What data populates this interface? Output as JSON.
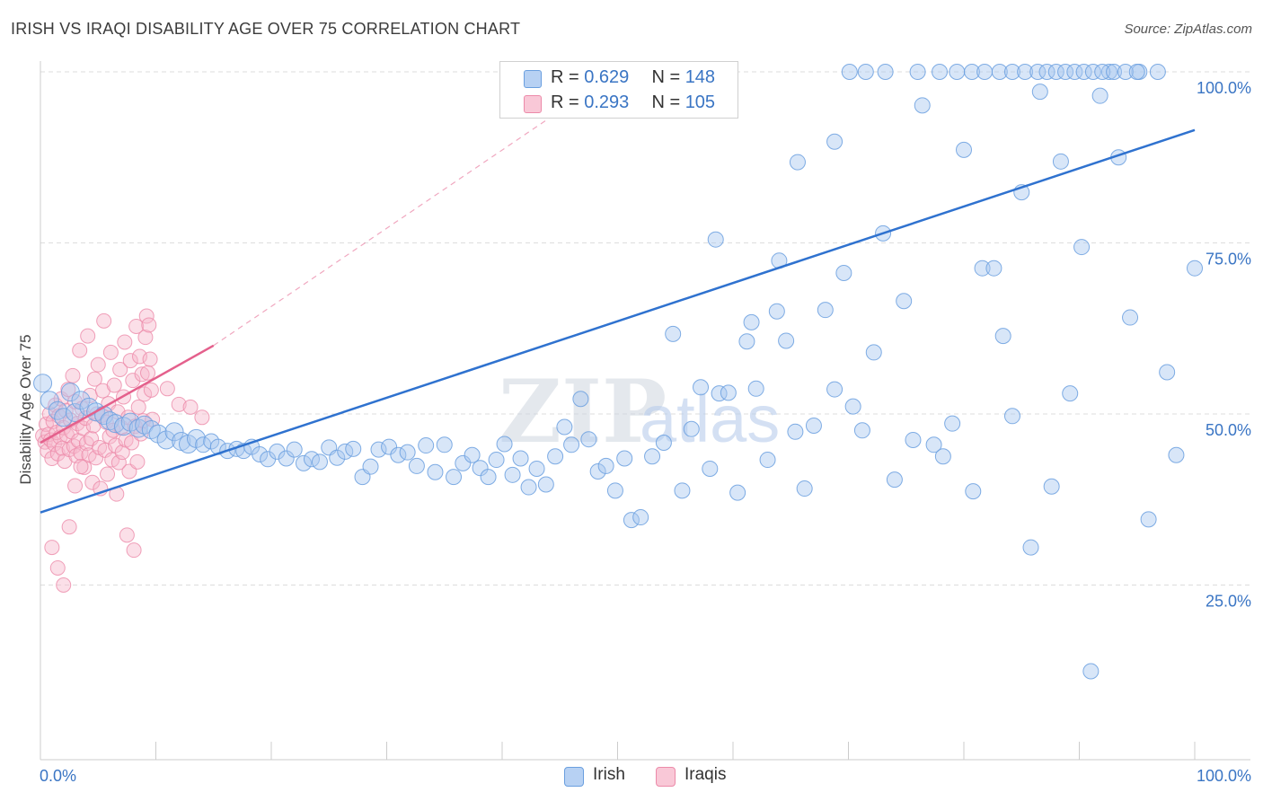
{
  "title": "IRISH VS IRAQI DISABILITY AGE OVER 75 CORRELATION CHART",
  "source": "Source: ZipAtlas.com",
  "watermark": {
    "zip": "ZIP",
    "atlas": "atlas"
  },
  "legend": {
    "irish": {
      "r_label": "R = ",
      "r_value": "0.629",
      "n_label": "N = ",
      "n_value": "148"
    },
    "iraqis": {
      "r_label": "R = ",
      "r_value": "0.293",
      "n_label": "N = ",
      "n_value": "105"
    }
  },
  "colors": {
    "irish_fill": "#a9c8f0",
    "irish_stroke": "#6a9fdf",
    "irish_line": "#2f72cf",
    "iraqis_fill": "#f7b8cb",
    "iraqis_stroke": "#ec8aa9",
    "iraqis_line": "#e4608c",
    "grid": "#dddddd",
    "tick_text": "#3a75c4"
  },
  "chart_data": {
    "type": "scatter",
    "title": "IRISH VS IRAQI DISABILITY AGE OVER 75 CORRELATION CHART",
    "xlabel": "",
    "ylabel": "Disability Age Over 75",
    "xlim": [
      0,
      100
    ],
    "ylim": [
      0,
      105
    ],
    "x_tick_labels": [
      "0.0%",
      "100.0%"
    ],
    "y_ticks": [
      25,
      50,
      75,
      100
    ],
    "y_tick_labels": [
      "25.0%",
      "50.0%",
      "75.0%",
      "100.0%"
    ],
    "grid": true,
    "legend_position": "bottom-center",
    "series": [
      {
        "name": "Irish",
        "r": 0.629,
        "n": 148,
        "trend": {
          "x0": 0,
          "y0": 35.6,
          "x1": 100,
          "y1": 91.5
        },
        "points": [
          [
            0.2,
            54.5
          ],
          [
            0.8,
            52.0
          ],
          [
            1.5,
            50.5
          ],
          [
            2.0,
            49.5
          ],
          [
            2.6,
            53.2
          ],
          [
            3.0,
            50.2
          ],
          [
            3.5,
            52.0
          ],
          [
            4.2,
            51.0
          ],
          [
            4.8,
            50.3
          ],
          [
            5.5,
            49.8
          ],
          [
            6.0,
            49.0
          ],
          [
            6.5,
            48.6
          ],
          [
            7.2,
            48.2
          ],
          [
            7.8,
            48.8
          ],
          [
            8.5,
            47.9
          ],
          [
            9.0,
            48.4
          ],
          [
            9.6,
            47.7
          ],
          [
            10.2,
            47.1
          ],
          [
            10.9,
            46.2
          ],
          [
            11.6,
            47.4
          ],
          [
            12.2,
            46.0
          ],
          [
            12.8,
            45.6
          ],
          [
            13.5,
            46.4
          ],
          [
            14.1,
            45.5
          ],
          [
            14.8,
            46.0
          ],
          [
            15.4,
            45.2
          ],
          [
            16.2,
            44.6
          ],
          [
            17.0,
            44.9
          ],
          [
            17.6,
            44.6
          ],
          [
            18.3,
            45.2
          ],
          [
            19.0,
            44.1
          ],
          [
            19.7,
            43.4
          ],
          [
            20.5,
            44.5
          ],
          [
            21.3,
            43.5
          ],
          [
            22.0,
            44.8
          ],
          [
            22.8,
            42.8
          ],
          [
            23.5,
            43.4
          ],
          [
            24.2,
            43.0
          ],
          [
            25.0,
            45.1
          ],
          [
            25.7,
            43.6
          ],
          [
            26.4,
            44.5
          ],
          [
            27.1,
            44.9
          ],
          [
            27.9,
            40.8
          ],
          [
            28.6,
            42.3
          ],
          [
            29.3,
            44.8
          ],
          [
            30.2,
            45.2
          ],
          [
            31.0,
            44.0
          ],
          [
            31.8,
            44.4
          ],
          [
            32.6,
            42.4
          ],
          [
            33.4,
            45.4
          ],
          [
            34.2,
            41.5
          ],
          [
            35.0,
            45.5
          ],
          [
            35.8,
            40.8
          ],
          [
            36.6,
            42.8
          ],
          [
            37.4,
            44.0
          ],
          [
            38.1,
            42.1
          ],
          [
            38.8,
            40.8
          ],
          [
            39.5,
            43.3
          ],
          [
            40.2,
            45.6
          ],
          [
            40.9,
            41.1
          ],
          [
            41.6,
            43.5
          ],
          [
            42.3,
            39.3
          ],
          [
            43.0,
            42.0
          ],
          [
            43.8,
            39.7
          ],
          [
            44.6,
            43.8
          ],
          [
            45.4,
            48.1
          ],
          [
            46.0,
            45.5
          ],
          [
            46.8,
            52.2
          ],
          [
            47.5,
            46.3
          ],
          [
            48.3,
            41.6
          ],
          [
            49.0,
            42.4
          ],
          [
            49.8,
            38.8
          ],
          [
            50.6,
            43.5
          ],
          [
            51.2,
            34.5
          ],
          [
            52.0,
            34.9
          ],
          [
            53.0,
            43.8
          ],
          [
            54.0,
            45.8
          ],
          [
            54.8,
            61.7
          ],
          [
            55.6,
            38.8
          ],
          [
            56.4,
            47.8
          ],
          [
            57.2,
            53.9
          ],
          [
            58.0,
            42.0
          ],
          [
            58.8,
            53.0
          ],
          [
            59.6,
            53.1
          ],
          [
            60.4,
            38.5
          ],
          [
            61.2,
            60.6
          ],
          [
            62.0,
            53.7
          ],
          [
            63.0,
            43.3
          ],
          [
            63.8,
            65.0
          ],
          [
            64.6,
            60.7
          ],
          [
            65.4,
            47.4
          ],
          [
            66.2,
            39.1
          ],
          [
            67.0,
            48.3
          ],
          [
            68.0,
            65.2
          ],
          [
            68.8,
            53.6
          ],
          [
            69.6,
            70.6
          ],
          [
            70.4,
            51.1
          ],
          [
            71.2,
            47.6
          ],
          [
            72.2,
            59.0
          ],
          [
            73.0,
            76.4
          ],
          [
            74.0,
            40.4
          ],
          [
            74.8,
            66.5
          ],
          [
            75.6,
            46.2
          ],
          [
            76.4,
            95.1
          ],
          [
            77.4,
            45.5
          ],
          [
            78.2,
            43.8
          ],
          [
            79.0,
            48.6
          ],
          [
            80.0,
            88.6
          ],
          [
            80.8,
            38.7
          ],
          [
            81.6,
            71.3
          ],
          [
            82.6,
            71.3
          ],
          [
            83.4,
            61.4
          ],
          [
            84.2,
            49.7
          ],
          [
            85.0,
            82.4
          ],
          [
            85.8,
            30.5
          ],
          [
            86.6,
            97.1
          ],
          [
            87.6,
            39.4
          ],
          [
            88.4,
            86.9
          ],
          [
            89.2,
            53.0
          ],
          [
            90.2,
            74.4
          ],
          [
            91.0,
            12.4
          ],
          [
            91.8,
            96.5
          ],
          [
            92.6,
            100.0
          ],
          [
            93.4,
            87.5
          ],
          [
            94.4,
            64.1
          ],
          [
            95.2,
            100.0
          ],
          [
            96.0,
            34.6
          ],
          [
            96.8,
            100.0
          ],
          [
            97.6,
            56.1
          ],
          [
            98.4,
            44.0
          ],
          [
            58.5,
            75.5
          ],
          [
            61.6,
            63.4
          ],
          [
            64.0,
            72.4
          ],
          [
            65.6,
            86.8
          ],
          [
            68.8,
            89.8
          ],
          [
            70.1,
            100.0
          ],
          [
            71.5,
            100.0
          ],
          [
            73.2,
            100.0
          ],
          [
            76.0,
            100.0
          ],
          [
            77.9,
            100.0
          ],
          [
            79.4,
            100.0
          ],
          [
            80.7,
            100.0
          ],
          [
            81.8,
            100.0
          ],
          [
            83.1,
            100.0
          ],
          [
            84.2,
            100.0
          ],
          [
            85.3,
            100.0
          ],
          [
            86.4,
            100.0
          ],
          [
            87.2,
            100.0
          ],
          [
            88.0,
            100.0
          ],
          [
            88.8,
            100.0
          ],
          [
            89.6,
            100.0
          ],
          [
            90.4,
            100.0
          ],
          [
            91.2,
            100.0
          ],
          [
            92.0,
            100.0
          ],
          [
            93.0,
            100.0
          ],
          [
            94.0,
            100.0
          ],
          [
            95.0,
            100.0
          ],
          [
            100.0,
            71.3
          ]
        ]
      },
      {
        "name": "Iraqis",
        "r": 0.293,
        "n": 105,
        "trend": {
          "x0": 0,
          "y0": 45.8,
          "x1": 15,
          "y1": 60.0,
          "extends_dashed_to": {
            "x": 50,
            "y": 100
          }
        },
        "points": [
          [
            0.2,
            46.8
          ],
          [
            0.4,
            45.9
          ],
          [
            0.5,
            48.5
          ],
          [
            0.6,
            44.6
          ],
          [
            0.7,
            47.0
          ],
          [
            0.8,
            50.0
          ],
          [
            0.9,
            46.2
          ],
          [
            1.0,
            43.5
          ],
          [
            1.1,
            48.9
          ],
          [
            1.2,
            45.6
          ],
          [
            1.3,
            51.3
          ],
          [
            1.4,
            47.3
          ],
          [
            1.5,
            44.2
          ],
          [
            1.6,
            49.7
          ],
          [
            1.7,
            46.6
          ],
          [
            1.8,
            52.2
          ],
          [
            1.9,
            45.0
          ],
          [
            2.0,
            48.0
          ],
          [
            2.1,
            43.1
          ],
          [
            2.2,
            50.5
          ],
          [
            2.3,
            46.9
          ],
          [
            2.4,
            53.6
          ],
          [
            2.5,
            44.8
          ],
          [
            2.6,
            49.1
          ],
          [
            2.7,
            47.4
          ],
          [
            2.8,
            55.6
          ],
          [
            2.9,
            45.3
          ],
          [
            3.0,
            51.8
          ],
          [
            3.1,
            43.9
          ],
          [
            3.2,
            48.6
          ],
          [
            3.3,
            46.1
          ],
          [
            3.4,
            59.3
          ],
          [
            3.5,
            44.3
          ],
          [
            3.6,
            50.8
          ],
          [
            3.7,
            47.9
          ],
          [
            3.8,
            42.2
          ],
          [
            3.9,
            49.4
          ],
          [
            4.0,
            45.7
          ],
          [
            4.1,
            61.4
          ],
          [
            4.2,
            44.0
          ],
          [
            4.3,
            52.7
          ],
          [
            4.4,
            46.4
          ],
          [
            4.5,
            40.0
          ],
          [
            4.6,
            48.3
          ],
          [
            4.7,
            55.1
          ],
          [
            4.8,
            43.6
          ],
          [
            4.9,
            50.0
          ],
          [
            5.0,
            57.2
          ],
          [
            5.1,
            45.1
          ],
          [
            5.2,
            39.1
          ],
          [
            5.3,
            49.8
          ],
          [
            5.4,
            53.4
          ],
          [
            5.5,
            63.6
          ],
          [
            5.6,
            44.7
          ],
          [
            5.7,
            48.8
          ],
          [
            5.8,
            41.2
          ],
          [
            5.9,
            51.5
          ],
          [
            6.0,
            46.7
          ],
          [
            6.1,
            59.0
          ],
          [
            6.2,
            43.3
          ],
          [
            6.3,
            47.6
          ],
          [
            6.4,
            54.2
          ],
          [
            6.5,
            45.4
          ],
          [
            6.6,
            38.3
          ],
          [
            6.7,
            50.3
          ],
          [
            6.8,
            42.9
          ],
          [
            6.9,
            56.5
          ],
          [
            7.0,
            48.0
          ],
          [
            7.1,
            44.4
          ],
          [
            7.2,
            52.5
          ],
          [
            7.3,
            60.5
          ],
          [
            7.4,
            46.2
          ],
          [
            7.5,
            32.3
          ],
          [
            7.6,
            49.5
          ],
          [
            7.7,
            41.6
          ],
          [
            7.8,
            57.8
          ],
          [
            7.9,
            45.8
          ],
          [
            8.0,
            54.9
          ],
          [
            8.1,
            30.1
          ],
          [
            8.2,
            48.2
          ],
          [
            8.3,
            62.8
          ],
          [
            8.4,
            43.0
          ],
          [
            8.5,
            51.0
          ],
          [
            8.6,
            58.4
          ],
          [
            8.7,
            47.1
          ],
          [
            8.8,
            55.8
          ],
          [
            8.9,
            49.0
          ],
          [
            9.0,
            52.9
          ],
          [
            9.1,
            61.2
          ],
          [
            9.2,
            64.3
          ],
          [
            9.3,
            56.0
          ],
          [
            9.4,
            63.0
          ],
          [
            9.5,
            58.0
          ],
          [
            9.6,
            53.5
          ],
          [
            9.7,
            49.2
          ],
          [
            1.5,
            27.5
          ],
          [
            2.0,
            25.0
          ],
          [
            1.0,
            30.5
          ],
          [
            2.5,
            33.5
          ],
          [
            3.0,
            39.5
          ],
          [
            3.5,
            42.3
          ],
          [
            11.0,
            53.7
          ],
          [
            12.0,
            51.4
          ],
          [
            13.0,
            51.0
          ],
          [
            14.0,
            49.5
          ]
        ]
      }
    ]
  }
}
